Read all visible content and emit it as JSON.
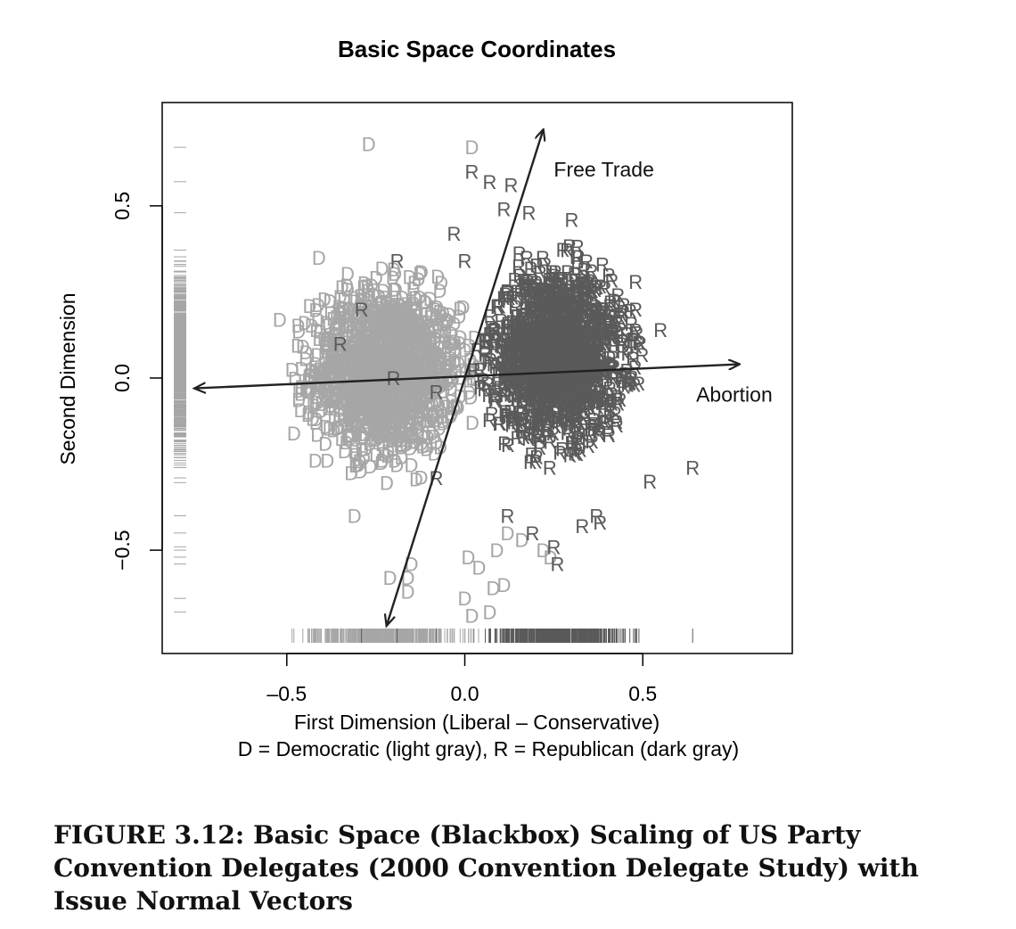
{
  "caption": "FIGURE 3.12: Basic Space (Blackbox) Scaling of US Party Convention Delegates (2000 Convention Delegate Study) with Issue Normal Vectors",
  "chart_data": {
    "type": "scatter",
    "title": "Basic Space Coordinates",
    "xlabel": "First Dimension (Liberal – Conservative)",
    "xlabel_note": "D = Democratic (light gray), R = Republican (dark gray)",
    "ylabel": "Second Dimension",
    "xlim": [
      -0.85,
      0.92
    ],
    "ylim": [
      -0.8,
      0.8
    ],
    "x_ticks": [
      -0.5,
      0.0,
      0.5
    ],
    "x_tick_labels": [
      "–0.5",
      "0.0",
      "0.5"
    ],
    "y_ticks": [
      -0.5,
      0.0,
      0.5
    ],
    "y_tick_labels": [
      "−0.5",
      "0.0",
      "0.5"
    ],
    "grid": false,
    "rug": {
      "x_axis": true,
      "y_axis": true
    },
    "series": [
      {
        "name": "D",
        "color": "#a6a6a6",
        "glyph": "D",
        "cloud": {
          "center": [
            -0.22,
            0.02
          ],
          "spread": [
            0.17,
            0.19
          ],
          "count": 1400
        },
        "outliers": [
          [
            -0.27,
            0.68
          ],
          [
            0.02,
            0.67
          ],
          [
            -0.41,
            0.35
          ],
          [
            -0.52,
            0.17
          ],
          [
            -0.48,
            -0.16
          ],
          [
            -0.42,
            -0.24
          ],
          [
            -0.31,
            -0.4
          ],
          [
            -0.15,
            -0.54
          ],
          [
            -0.16,
            -0.58
          ],
          [
            -0.21,
            -0.58
          ],
          [
            0.12,
            -0.45
          ],
          [
            0.09,
            -0.5
          ],
          [
            0.16,
            -0.47
          ],
          [
            0.01,
            -0.52
          ],
          [
            0.04,
            -0.55
          ],
          [
            -0.16,
            -0.62
          ],
          [
            0.0,
            -0.64
          ],
          [
            0.08,
            -0.61
          ],
          [
            0.11,
            -0.6
          ],
          [
            0.22,
            -0.5
          ],
          [
            0.24,
            -0.52
          ],
          [
            0.02,
            -0.69
          ],
          [
            0.07,
            -0.68
          ]
        ]
      },
      {
        "name": "R",
        "color": "#5a5a5a",
        "glyph": "R",
        "cloud": {
          "center": [
            0.26,
            0.07
          ],
          "spread": [
            0.15,
            0.19
          ],
          "count": 1400
        },
        "outliers": [
          [
            0.02,
            0.6
          ],
          [
            0.07,
            0.57
          ],
          [
            0.13,
            0.56
          ],
          [
            0.11,
            0.49
          ],
          [
            0.18,
            0.48
          ],
          [
            0.3,
            0.46
          ],
          [
            0.48,
            0.28
          ],
          [
            0.48,
            0.2
          ],
          [
            0.55,
            0.14
          ],
          [
            -0.35,
            0.1
          ],
          [
            -0.29,
            0.2
          ],
          [
            -0.03,
            0.42
          ],
          [
            0.0,
            0.34
          ],
          [
            -0.19,
            0.34
          ],
          [
            -0.2,
            0.0
          ],
          [
            -0.08,
            -0.04
          ],
          [
            -0.08,
            -0.29
          ],
          [
            0.12,
            -0.4
          ],
          [
            0.19,
            -0.45
          ],
          [
            0.25,
            -0.49
          ],
          [
            0.26,
            -0.54
          ],
          [
            0.33,
            -0.43
          ],
          [
            0.37,
            -0.4
          ],
          [
            0.38,
            -0.42
          ],
          [
            0.52,
            -0.3
          ],
          [
            0.64,
            -0.26
          ]
        ]
      }
    ],
    "vectors": [
      {
        "label": "Free Trade",
        "from": [
          -0.22,
          -0.72
        ],
        "to": [
          0.22,
          0.72
        ]
      },
      {
        "label": "Abortion",
        "from": [
          -0.76,
          -0.03
        ],
        "to": [
          0.77,
          0.04
        ]
      }
    ]
  }
}
